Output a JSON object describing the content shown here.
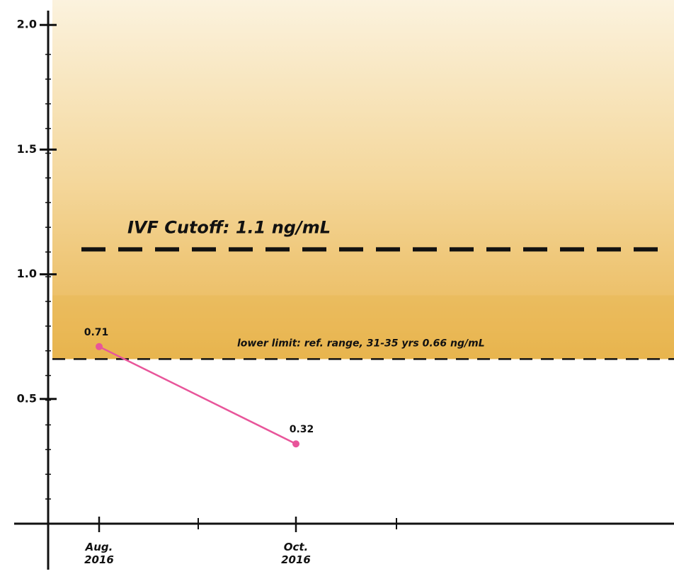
{
  "chart_data": {
    "type": "line",
    "categories": [
      "Aug. 2016",
      "Oct. 2016"
    ],
    "series": [
      {
        "color": "#e8559a",
        "values": [
          0.71,
          0.32
        ]
      }
    ],
    "ylim": [
      0,
      2.1
    ],
    "yticks": [
      0.5,
      {
        "value": 1,
        "label": "1.0"
      },
      1.5,
      {
        "value": 2,
        "label": "2.0"
      }
    ],
    "reference_lines": [
      {
        "value": 1.1,
        "label": "IVF Cutoff: 1.1 ng/mL"
      },
      {
        "value": 0.66,
        "label": "lower limit: ref. range, 31-35 yrs 0.66 ng/mL"
      }
    ],
    "band_color": "#e9b54a"
  }
}
